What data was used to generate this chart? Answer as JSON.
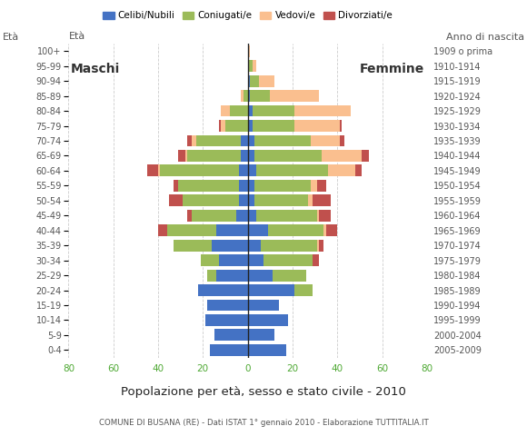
{
  "age_groups": [
    "0-4",
    "5-9",
    "10-14",
    "15-19",
    "20-24",
    "25-29",
    "30-34",
    "35-39",
    "40-44",
    "45-49",
    "50-54",
    "55-59",
    "60-64",
    "65-69",
    "70-74",
    "75-79",
    "80-84",
    "85-89",
    "90-94",
    "95-99",
    "100+"
  ],
  "birth_years": [
    "2005-2009",
    "2000-2004",
    "1995-1999",
    "1990-1994",
    "1985-1989",
    "1980-1984",
    "1975-1979",
    "1970-1974",
    "1965-1969",
    "1960-1964",
    "1955-1959",
    "1950-1954",
    "1945-1949",
    "1940-1944",
    "1935-1939",
    "1930-1934",
    "1925-1929",
    "1920-1924",
    "1915-1919",
    "1910-1914",
    "1909 o prima"
  ],
  "male_celibi": [
    17,
    15,
    19,
    18,
    22,
    14,
    13,
    16,
    14,
    5,
    4,
    4,
    4,
    3,
    3,
    0,
    0,
    0,
    0,
    0,
    0
  ],
  "male_coniugati": [
    0,
    0,
    0,
    0,
    0,
    4,
    8,
    17,
    22,
    20,
    25,
    27,
    35,
    24,
    20,
    10,
    8,
    2,
    0,
    0,
    0
  ],
  "male_vedovi": [
    0,
    0,
    0,
    0,
    0,
    0,
    0,
    0,
    0,
    0,
    0,
    0,
    1,
    1,
    2,
    2,
    4,
    1,
    0,
    0,
    0
  ],
  "male_divorziati": [
    0,
    0,
    0,
    0,
    0,
    0,
    0,
    0,
    4,
    2,
    6,
    2,
    5,
    3,
    2,
    1,
    0,
    0,
    0,
    0,
    0
  ],
  "female_celibi": [
    17,
    12,
    18,
    14,
    21,
    11,
    7,
    6,
    9,
    4,
    3,
    3,
    4,
    3,
    3,
    2,
    2,
    1,
    1,
    0,
    0
  ],
  "female_coniugati": [
    0,
    0,
    0,
    0,
    8,
    15,
    22,
    25,
    25,
    27,
    24,
    25,
    32,
    30,
    25,
    19,
    19,
    9,
    4,
    2,
    0
  ],
  "female_vedovi": [
    0,
    0,
    0,
    0,
    0,
    0,
    0,
    1,
    1,
    1,
    2,
    3,
    12,
    18,
    13,
    20,
    25,
    22,
    7,
    2,
    1
  ],
  "female_divorziati": [
    0,
    0,
    0,
    0,
    0,
    0,
    3,
    2,
    5,
    5,
    8,
    4,
    3,
    3,
    2,
    1,
    0,
    0,
    0,
    0,
    0
  ],
  "color_celibi": "#4472C4",
  "color_coniugati": "#9BBB59",
  "color_vedovi": "#FABF8F",
  "color_divorziati": "#C0504D",
  "title": "Popolazione per età, sesso e stato civile - 2010",
  "subtitle": "COMUNE DI BUSANA (RE) - Dati ISTAT 1° gennaio 2010 - Elaborazione TUTTITALIA.IT",
  "xlim": 80,
  "background_color": "#ffffff",
  "grid_color": "#cccccc",
  "legend_labels": [
    "Celibi/Nubili",
    "Coniugati/e",
    "Vedovi/e",
    "Divorziati/e"
  ]
}
